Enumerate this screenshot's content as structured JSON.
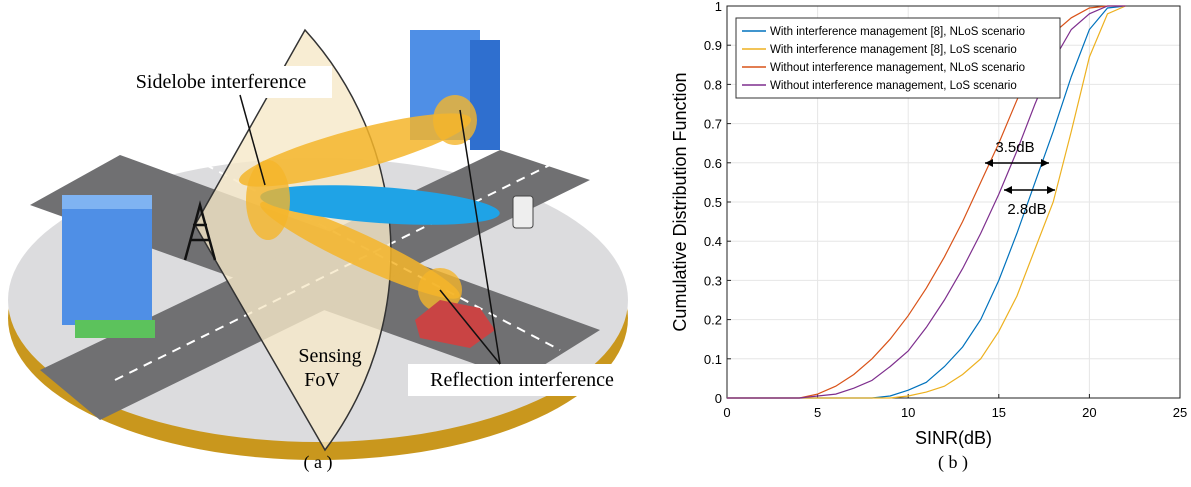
{
  "figure_a": {
    "labels": {
      "sidelobe": "Sidelobe interference",
      "sensing": "Sensing",
      "fov": "FoV",
      "reflection": "Reflection interference"
    },
    "caption": "( a )"
  },
  "figure_b_caption": "( b )",
  "chart_data": {
    "type": "line",
    "xlabel": "SINR(dB)",
    "ylabel": "Cumulative Distribution Function",
    "x": [
      0,
      1,
      2,
      3,
      4,
      5,
      6,
      7,
      8,
      9,
      10,
      11,
      12,
      13,
      14,
      15,
      16,
      17,
      18,
      19,
      20,
      21,
      22
    ],
    "series": [
      {
        "name": "With interference management [8], NLoS scenario",
        "color": "#0072bd",
        "values": [
          0,
          0,
          0,
          0,
          0,
          0,
          0,
          0,
          0,
          0.005,
          0.02,
          0.04,
          0.08,
          0.13,
          0.2,
          0.3,
          0.42,
          0.55,
          0.68,
          0.82,
          0.94,
          0.995,
          1
        ]
      },
      {
        "name": "With interference management [8], LoS scenario",
        "color": "#edb120",
        "values": [
          0,
          0,
          0,
          0,
          0,
          0,
          0,
          0,
          0,
          0,
          0.005,
          0.015,
          0.03,
          0.06,
          0.1,
          0.17,
          0.26,
          0.38,
          0.5,
          0.68,
          0.87,
          0.98,
          1
        ]
      },
      {
        "name": "Without interference management, NLoS scenario",
        "color": "#d95319",
        "values": [
          0,
          0,
          0,
          0,
          0,
          0.01,
          0.03,
          0.06,
          0.1,
          0.15,
          0.21,
          0.28,
          0.36,
          0.45,
          0.55,
          0.65,
          0.76,
          0.86,
          0.93,
          0.97,
          0.995,
          1,
          1
        ]
      },
      {
        "name": "Without interference management, LoS scenario",
        "color": "#7e2f8e",
        "values": [
          0,
          0,
          0,
          0,
          0,
          0.005,
          0.01,
          0.025,
          0.045,
          0.08,
          0.12,
          0.18,
          0.25,
          0.33,
          0.42,
          0.52,
          0.63,
          0.75,
          0.86,
          0.94,
          0.98,
          1,
          1
        ]
      }
    ],
    "annotations": [
      "3.5dB",
      "2.8dB"
    ],
    "xlim": [
      0,
      25
    ],
    "xticks": [
      0,
      5,
      10,
      15,
      20,
      25
    ],
    "ylim": [
      0,
      1
    ],
    "yticks": [
      0,
      0.1,
      0.2,
      0.3,
      0.4,
      0.5,
      0.6,
      0.7,
      0.8,
      0.9,
      1
    ],
    "grid": true,
    "legend": "upper left"
  }
}
